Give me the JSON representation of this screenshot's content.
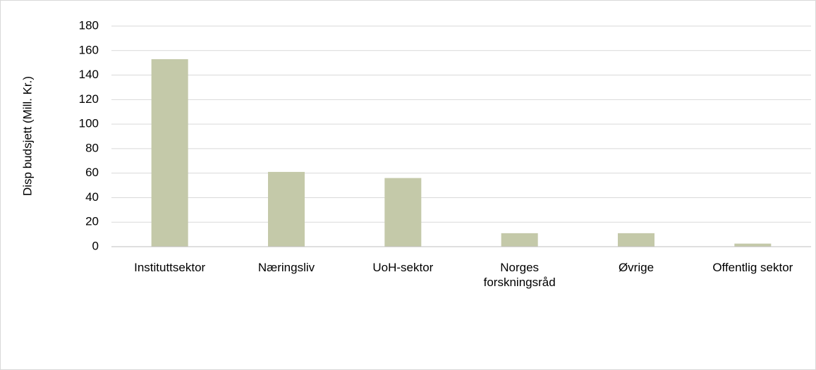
{
  "chart_data": {
    "type": "bar",
    "y_label": "Disp budsjett (Mill. Kr.)",
    "categories": [
      "Instituttsektor",
      "Næringsliv",
      "UoH-sektor",
      "Norges forskningsråd",
      "Øvrige",
      "Offentlig sektor"
    ],
    "values": [
      153,
      61,
      56,
      11,
      11,
      2.5
    ],
    "color": "#c4c9a9",
    "ylim": [
      0,
      180
    ],
    "yticks": [
      0,
      20,
      40,
      60,
      80,
      100,
      120,
      140,
      160,
      180
    ],
    "grid": true
  }
}
